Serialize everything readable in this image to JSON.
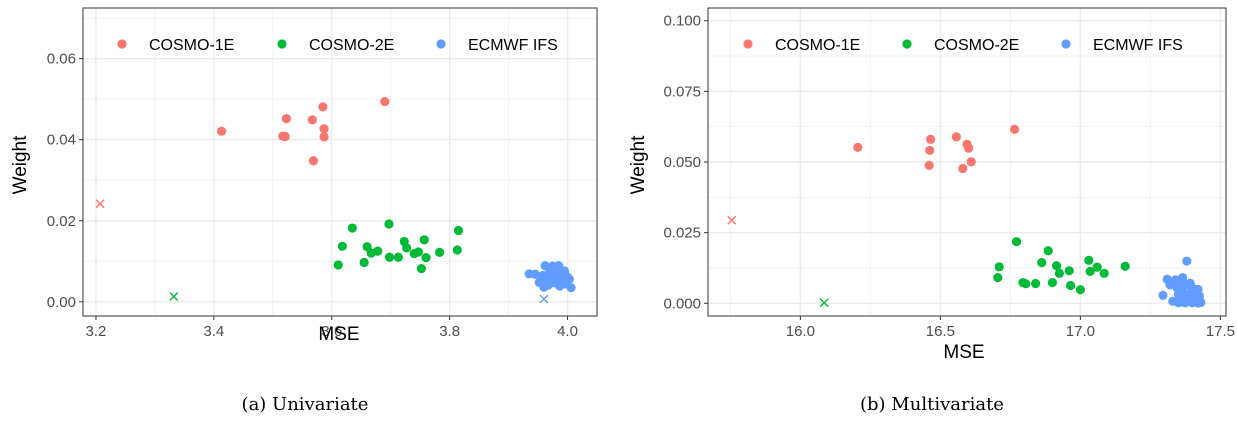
{
  "series_colors": {
    "COSMO-1E": "#F8766D",
    "COSMO-2E": "#00BA38",
    "ECMWF IFS": "#619CFF"
  },
  "chart_data": [
    {
      "type": "scatter",
      "caption": "(a) Univariate",
      "xlabel": "MSE",
      "ylabel": "Weight",
      "xlim": [
        3.178,
        4.05
      ],
      "ylim": [
        -0.0035,
        0.0725
      ],
      "xticks": [
        3.2,
        3.4,
        3.6,
        3.8,
        4.0
      ],
      "xtick_labels": [
        "3.2",
        "3.4",
        "3.6",
        "3.8",
        "4.0"
      ],
      "yticks": [
        0.0,
        0.02,
        0.04,
        0.06
      ],
      "ytick_labels": [
        "0.00",
        "0.02",
        "0.04",
        "0.06"
      ],
      "grid": true,
      "legend": {
        "position": "top",
        "entries": [
          "COSMO-1E",
          "COSMO-2E",
          "ECMWF IFS"
        ]
      },
      "series": [
        {
          "name": "COSMO-1E",
          "x": [
            3.413,
            3.517,
            3.521,
            3.523,
            3.567,
            3.569,
            3.585,
            3.587,
            3.587,
            3.69
          ],
          "y": [
            0.0421,
            0.0409,
            0.0408,
            0.0452,
            0.0449,
            0.0348,
            0.0481,
            0.0427,
            0.0407,
            0.0494
          ]
        },
        {
          "name": "COSMO-2E",
          "x": [
            3.611,
            3.618,
            3.635,
            3.655,
            3.66,
            3.667,
            3.678,
            3.697,
            3.698,
            3.713,
            3.723,
            3.727,
            3.74,
            3.747,
            3.752,
            3.757,
            3.76,
            3.783,
            3.813,
            3.815
          ],
          "y": [
            0.0091,
            0.0137,
            0.0182,
            0.0097,
            0.0136,
            0.012,
            0.0125,
            0.0192,
            0.011,
            0.011,
            0.0149,
            0.0133,
            0.0119,
            0.0123,
            0.0082,
            0.0153,
            0.0109,
            0.0122,
            0.0128,
            0.0176
          ]
        },
        {
          "name": "ECMWF IFS",
          "x": [
            3.935,
            3.945,
            3.952,
            3.958,
            3.962,
            3.965,
            3.967,
            3.97,
            3.972,
            3.975,
            3.977,
            3.98,
            3.982,
            3.985,
            3.987,
            3.99,
            3.992,
            3.995,
            3.998,
            4.0,
            4.003,
            4.006,
            3.96,
            3.975,
            3.985,
            3.995,
            3.97,
            3.988
          ],
          "y": [
            0.0069,
            0.0068,
            0.0048,
            0.0065,
            0.0089,
            0.0055,
            0.0041,
            0.0075,
            0.006,
            0.0088,
            0.0047,
            0.0071,
            0.0058,
            0.0089,
            0.0039,
            0.0067,
            0.0052,
            0.0076,
            0.0044,
            0.0061,
            0.0056,
            0.0035,
            0.0036,
            0.0066,
            0.0079,
            0.005,
            0.0053,
            0.0043
          ]
        }
      ],
      "crosses": [
        {
          "name": "COSMO-1E",
          "x": 3.207,
          "y": 0.0242
        },
        {
          "name": "COSMO-2E",
          "x": 3.332,
          "y": 0.0013
        },
        {
          "name": "ECMWF IFS",
          "x": 3.96,
          "y": 0.0007
        }
      ]
    },
    {
      "type": "scatter",
      "caption": "(b) Multivariate",
      "xlabel": "MSE",
      "ylabel": "Weight",
      "xlim": [
        15.67,
        17.52
      ],
      "ylim": [
        -0.0045,
        0.1045
      ],
      "xticks": [
        16.0,
        16.5,
        17.0,
        17.5
      ],
      "xtick_labels": [
        "16.0",
        "16.5",
        "17.0",
        "17.5"
      ],
      "yticks": [
        0.0,
        0.025,
        0.05,
        0.075,
        0.1
      ],
      "ytick_labels": [
        "0.000",
        "0.025",
        "0.050",
        "0.075",
        "0.100"
      ],
      "grid": true,
      "legend": {
        "position": "top",
        "entries": [
          "COSMO-1E",
          "COSMO-2E",
          "ECMWF IFS"
        ]
      },
      "series": [
        {
          "name": "COSMO-1E",
          "x": [
            16.205,
            16.46,
            16.462,
            16.465,
            16.557,
            16.58,
            16.595,
            16.601,
            16.61,
            16.765
          ],
          "y": [
            0.0552,
            0.0488,
            0.0541,
            0.058,
            0.0589,
            0.0477,
            0.0563,
            0.0549,
            0.0501,
            0.0616
          ]
        },
        {
          "name": "COSMO-2E",
          "x": [
            16.705,
            16.71,
            16.772,
            16.795,
            16.805,
            16.84,
            16.862,
            16.885,
            16.9,
            16.915,
            16.925,
            16.96,
            16.965,
            17.0,
            17.03,
            17.035,
            17.06,
            17.085,
            17.16
          ],
          "y": [
            0.0091,
            0.0129,
            0.0218,
            0.0073,
            0.0069,
            0.007,
            0.0144,
            0.0186,
            0.0073,
            0.0133,
            0.0106,
            0.0115,
            0.0063,
            0.0048,
            0.0152,
            0.0113,
            0.0128,
            0.0106,
            0.0131
          ]
        },
        {
          "name": "ECMWF IFS",
          "x": [
            17.295,
            17.31,
            17.32,
            17.33,
            17.34,
            17.345,
            17.35,
            17.355,
            17.36,
            17.365,
            17.37,
            17.375,
            17.38,
            17.385,
            17.39,
            17.395,
            17.4,
            17.405,
            17.41,
            17.415,
            17.42,
            17.425,
            17.43,
            17.35,
            17.365,
            17.38,
            17.392,
            17.405,
            17.42,
            17.36,
            17.375,
            17.39
          ],
          "y": [
            0.0028,
            0.0085,
            0.0065,
            0.0007,
            0.0083,
            0.0055,
            0.0002,
            0.0075,
            0.0015,
            0.0091,
            0.0004,
            0.0068,
            0.0149,
            0.0011,
            0.0063,
            0.0036,
            0.0002,
            0.0051,
            0.0009,
            0.004,
            0.0001,
            0.0026,
            0.0003,
            0.0032,
            0.0043,
            0.0019,
            0.0071,
            0.0011,
            0.0049,
            0.0057,
            0.0002,
            0.0024
          ]
        }
      ],
      "crosses": [
        {
          "name": "COSMO-1E",
          "x": 15.755,
          "y": 0.0294
        },
        {
          "name": "COSMO-2E",
          "x": 16.085,
          "y": 0.0002
        }
      ]
    }
  ]
}
